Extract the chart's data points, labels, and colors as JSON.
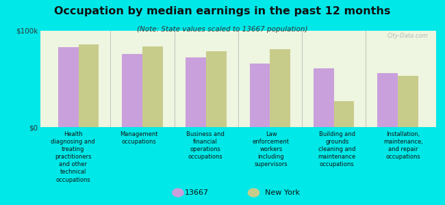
{
  "title": "Occupation by median earnings in the past 12 months",
  "subtitle": "(Note: State values scaled to 13667 population)",
  "background_color": "#00e8e8",
  "plot_bg_color": "#eef5e0",
  "categories": [
    "Health\ndiagnosing and\ntreating\npractitioners\nand other\ntechnical\noccupations",
    "Management\noccupations",
    "Business and\nfinancial\noperations\noccupations",
    "Law\nenforcement\nworkers\nincluding\nsupervisors",
    "Building and\ngrounds\ncleaning and\nmaintenance\noccupations",
    "Installation,\nmaintenance,\nand repair\noccupations"
  ],
  "values_13667": [
    83000,
    76000,
    72000,
    66000,
    61000,
    56000
  ],
  "values_ny": [
    86000,
    84000,
    79000,
    81000,
    27000,
    53000
  ],
  "color_13667": "#c9a0dc",
  "color_ny": "#c8cc8a",
  "ylim": [
    0,
    100000
  ],
  "yticks": [
    0,
    100000
  ],
  "ytick_labels": [
    "$0",
    "$100k"
  ],
  "legend_13667": "13667",
  "legend_ny": "New York",
  "watermark": "City-Data.com"
}
